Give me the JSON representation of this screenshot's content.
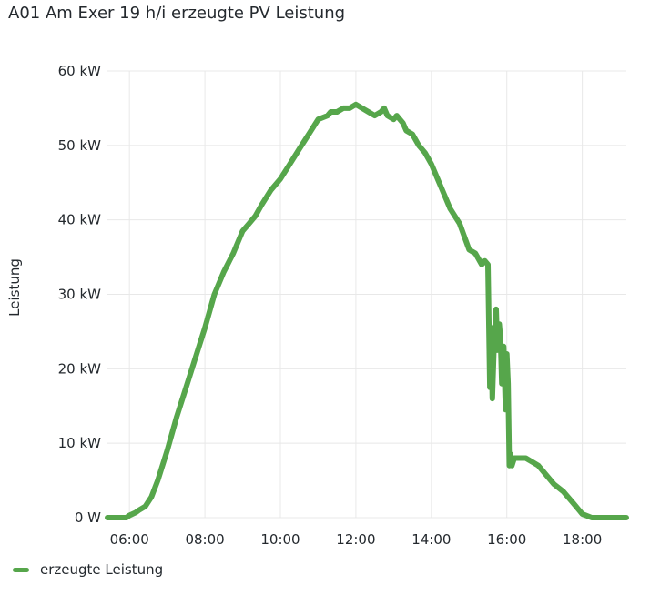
{
  "panel": {
    "title": "A01 Am Exer 19 h/i erzeugte PV Leistung"
  },
  "legend": {
    "series_label": "erzeugte Leistung"
  },
  "colors": {
    "series": "#56a64b",
    "grid": "#e8e8e8",
    "text": "#24292e"
  },
  "chart_data": {
    "type": "line",
    "title": "A01 Am Exer 19 h/i erzeugte PV Leistung",
    "xlabel": "",
    "ylabel": "Leistung",
    "y_unit": "kW",
    "ylim": [
      0,
      60
    ],
    "xlim": [
      "05:25",
      "19:10"
    ],
    "grid": true,
    "legend_position": "bottom-left",
    "x_ticks": [
      "06:00",
      "08:00",
      "10:00",
      "12:00",
      "14:00",
      "16:00",
      "18:00"
    ],
    "y_ticks": [
      "0 W",
      "10 kW",
      "20 kW",
      "30 kW",
      "40 kW",
      "50 kW",
      "60 kW"
    ],
    "series": [
      {
        "name": "erzeugte Leistung",
        "x": [
          "05:25",
          "05:40",
          "05:55",
          "06:00",
          "06:10",
          "06:15",
          "06:25",
          "06:35",
          "06:45",
          "07:00",
          "07:15",
          "07:30",
          "07:45",
          "08:00",
          "08:15",
          "08:30",
          "08:45",
          "09:00",
          "09:10",
          "09:20",
          "09:30",
          "09:45",
          "10:00",
          "10:15",
          "10:30",
          "10:45",
          "11:00",
          "11:15",
          "11:20",
          "11:30",
          "11:40",
          "11:45",
          "11:50",
          "12:00",
          "12:10",
          "12:20",
          "12:30",
          "12:40",
          "12:45",
          "12:50",
          "13:00",
          "13:05",
          "13:15",
          "13:20",
          "13:30",
          "13:40",
          "13:50",
          "14:00",
          "14:10",
          "14:20",
          "14:30",
          "14:45",
          "15:00",
          "15:10",
          "15:20",
          "15:25",
          "15:30",
          "15:33",
          "15:35",
          "15:37",
          "15:40",
          "15:43",
          "15:45",
          "15:48",
          "15:50",
          "15:52",
          "15:55",
          "15:58",
          "16:00",
          "16:02",
          "16:04",
          "16:06",
          "16:08",
          "16:10",
          "16:12",
          "16:15",
          "16:20",
          "16:25",
          "16:30",
          "16:40",
          "16:50",
          "17:00",
          "17:15",
          "17:30",
          "17:45",
          "18:00",
          "18:15",
          "18:30",
          "18:45",
          "19:10"
        ],
        "y": [
          0,
          0,
          0,
          0.3,
          0.7,
          1.0,
          1.5,
          2.8,
          5.0,
          9.0,
          13.5,
          17.5,
          21.5,
          25.5,
          30.0,
          33.0,
          35.5,
          38.5,
          39.5,
          40.5,
          42.0,
          44.0,
          45.5,
          47.5,
          49.5,
          51.5,
          53.5,
          54.0,
          54.5,
          54.5,
          55.0,
          55.0,
          55.0,
          55.5,
          55.0,
          54.5,
          54.0,
          54.5,
          55.0,
          54.0,
          53.5,
          54.0,
          53.0,
          52.0,
          51.5,
          50.0,
          49.0,
          47.5,
          45.5,
          43.5,
          41.5,
          39.5,
          36.0,
          35.5,
          34.0,
          34.5,
          34.0,
          17.5,
          25.5,
          16.0,
          24.0,
          28.0,
          22.5,
          26.0,
          24.0,
          18.0,
          23.0,
          14.5,
          22.0,
          18.0,
          7.0,
          8.5,
          7.0,
          7.5,
          8.0,
          8.0,
          8.0,
          8.0,
          8.0,
          7.5,
          7.0,
          6.0,
          4.5,
          3.5,
          2.0,
          0.5,
          0,
          0,
          0,
          0
        ]
      }
    ]
  }
}
